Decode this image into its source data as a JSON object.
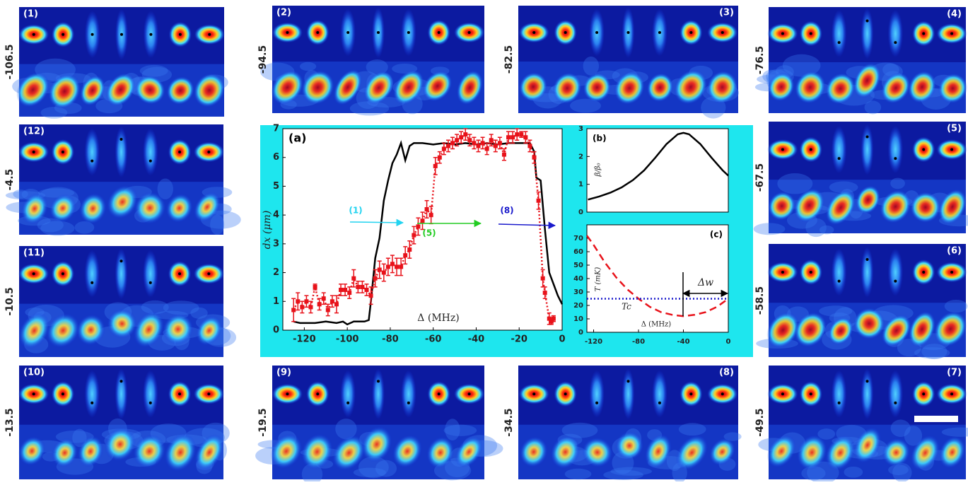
{
  "panels": [
    {
      "label": "(1)",
      "detuning": -106.5
    },
    {
      "label": "(2)",
      "detuning": -94.5
    },
    {
      "label": "(3)",
      "detuning": -82.5
    },
    {
      "label": "(4)",
      "detuning": -76.5
    },
    {
      "label": "(5)",
      "detuning": -67.5
    },
    {
      "label": "(6)",
      "detuning": -58.5
    },
    {
      "label": "(7)",
      "detuning": -49.5
    },
    {
      "label": "(8)",
      "detuning": -34.5
    },
    {
      "label": "(9)",
      "detuning": -19.5
    },
    {
      "label": "(10)",
      "detuning": -13.5
    },
    {
      "label": "(11)",
      "detuning": -10.5
    },
    {
      "label": "(12)",
      "detuning": -4.5
    }
  ],
  "chart_data": [
    {
      "type": "line",
      "title": "(a)",
      "ylabel": "dx (μm)",
      "xlabel": "Δ (MHz)",
      "xlim": [
        -130,
        0
      ],
      "ylim": [
        0,
        7
      ],
      "xticks": [
        -120,
        -100,
        -80,
        -60,
        -40,
        -20,
        0
      ],
      "yticks": [
        0,
        1,
        2,
        3,
        4,
        5,
        6,
        7
      ],
      "series": [
        {
          "color": "#000000",
          "style": "solid",
          "x": [
            -125,
            -122,
            -115,
            -110,
            -105,
            -102,
            -100,
            -97,
            -92,
            -90,
            -89,
            -87,
            -85,
            -83,
            -81,
            -79,
            -77,
            -75,
            -73,
            -71,
            -69,
            -65,
            -60,
            -55,
            -50,
            -45,
            -40,
            -35,
            -30,
            -25,
            -20,
            -15,
            -13,
            -12,
            -10,
            -8,
            -6,
            -4,
            -2,
            0
          ],
          "values": [
            0.3,
            0.25,
            0.25,
            0.3,
            0.25,
            0.3,
            0.2,
            0.3,
            0.3,
            0.35,
            1,
            2.5,
            3.2,
            4.5,
            5.2,
            5.8,
            6.1,
            6.5,
            5.9,
            6.4,
            6.5,
            6.5,
            6.45,
            6.5,
            6.45,
            6.5,
            6.45,
            6.5,
            6.45,
            6.5,
            6.5,
            6.5,
            6.2,
            5.3,
            5.2,
            3.5,
            2,
            1.6,
            1.2,
            0.9
          ]
        },
        {
          "color": "#e8121a",
          "style": "dotted",
          "marker": "square",
          "x": [
            -125,
            -123,
            -121,
            -119,
            -117,
            -115,
            -113,
            -111,
            -109,
            -107,
            -105,
            -103,
            -101,
            -99,
            -97,
            -95,
            -93,
            -91,
            -89,
            -87,
            -85,
            -83,
            -81,
            -79,
            -77,
            -75,
            -73,
            -71,
            -69,
            -67,
            -65,
            -63,
            -61,
            -59,
            -57,
            -55,
            -53,
            -51,
            -49,
            -47,
            -45,
            -43,
            -41,
            -39,
            -37,
            -35,
            -33,
            -31,
            -29,
            -27,
            -25,
            -23,
            -21,
            -19,
            -17,
            -15,
            -13,
            -11,
            -9,
            -8,
            -6,
            -5,
            -4
          ],
          "values": [
            0.7,
            1.0,
            0.8,
            1.0,
            0.8,
            1.5,
            0.9,
            1.1,
            0.7,
            1.0,
            0.9,
            1.4,
            1.4,
            1.3,
            1.8,
            1.5,
            1.5,
            1.4,
            1.2,
            1.8,
            2.1,
            2.0,
            2.2,
            2.3,
            2.2,
            2.2,
            2.6,
            2.8,
            3.3,
            3.6,
            3.8,
            4.2,
            4.0,
            5.7,
            6.0,
            6.3,
            6.4,
            6.5,
            6.6,
            6.7,
            6.8,
            6.6,
            6.5,
            6.4,
            6.5,
            6.3,
            6.6,
            6.4,
            6.5,
            6.1,
            6.7,
            6.7,
            6.8,
            6.8,
            6.7,
            6.4,
            6.0,
            4.5,
            1.8,
            1.3,
            0.4,
            0.3,
            0.4
          ],
          "errors": [
            0.4,
            0.3,
            0.2,
            0.2,
            0.2,
            0.1,
            0.2,
            0.2,
            0.2,
            0.2,
            0.3,
            0.2,
            0.2,
            0.2,
            0.3,
            0.2,
            0.2,
            0.2,
            0.3,
            0.3,
            0.3,
            0.3,
            0.3,
            0.3,
            0.3,
            0.3,
            0.3,
            0.3,
            0.3,
            0.3,
            0.3,
            0.3,
            0.3,
            0.3,
            0.2,
            0.2,
            0.2,
            0.2,
            0.2,
            0.2,
            0.2,
            0.2,
            0.2,
            0.2,
            0.2,
            0.2,
            0.2,
            0.2,
            0.2,
            0.2,
            0.2,
            0.2,
            0.2,
            0.1,
            0.2,
            0.2,
            0.2,
            0.3,
            0.3,
            0.2,
            0.2,
            0.1,
            0.1
          ]
        }
      ],
      "annotations": [
        {
          "text": "(1)",
          "color": "#22d3f0"
        },
        {
          "text": "(5)",
          "color": "#22cc22"
        },
        {
          "text": "(8)",
          "color": "#1a1acc"
        }
      ]
    },
    {
      "type": "line",
      "title": "(b)",
      "ylabel": "β/β₀",
      "xlim": [
        -126,
        0
      ],
      "ylim": [
        0,
        3
      ],
      "yticks": [
        0,
        1,
        2,
        3
      ],
      "series": [
        {
          "color": "#000000",
          "style": "solid",
          "x": [
            -125,
            -115,
            -105,
            -95,
            -85,
            -75,
            -65,
            -55,
            -45,
            -40,
            -35,
            -25,
            -15,
            -5,
            0
          ],
          "values": [
            0.45,
            0.56,
            0.7,
            0.89,
            1.15,
            1.5,
            1.96,
            2.45,
            2.8,
            2.85,
            2.8,
            2.45,
            1.96,
            1.5,
            1.31
          ]
        }
      ]
    },
    {
      "type": "line",
      "title": "(c)",
      "ylabel": "T (mK)",
      "xlabel": "Δ (MHz)",
      "threshold_label": "Tc",
      "width_label": "Δw",
      "xlim": [
        -126,
        0
      ],
      "ylim": [
        0,
        80
      ],
      "xticks": [
        -120,
        -80,
        -40,
        0
      ],
      "yticks": [
        0,
        10,
        20,
        30,
        40,
        50,
        60,
        70
      ],
      "series": [
        {
          "color": "#e8121a",
          "style": "dashed",
          "x": [
            -126,
            -120,
            -110,
            -100,
            -90,
            -80,
            -70,
            -60,
            -50,
            -40,
            -30,
            -20,
            -10,
            0
          ],
          "values": [
            72,
            65,
            52,
            41,
            32,
            25,
            19,
            15,
            13,
            12,
            13,
            15,
            19,
            25
          ]
        },
        {
          "color": "#1a1acc",
          "style": "dotted",
          "x": [
            -126,
            0
          ],
          "values": [
            25,
            25
          ]
        }
      ]
    }
  ]
}
